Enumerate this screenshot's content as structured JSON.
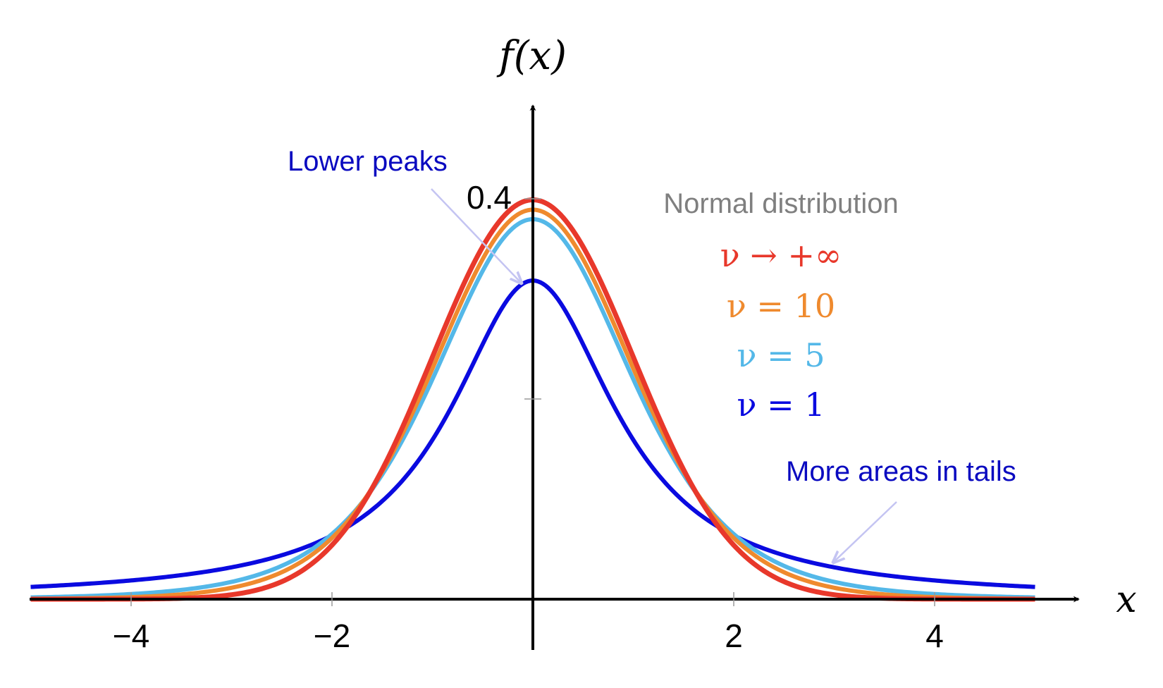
{
  "chart_data": {
    "type": "line",
    "title": "",
    "xlabel": "x",
    "ylabel": "f(x)",
    "xlim": [
      -5,
      5
    ],
    "ylim": [
      0,
      0.4
    ],
    "x_ticks": [
      -4,
      -2,
      2,
      4
    ],
    "x_tick_labels": [
      "−4",
      "−2",
      "2",
      "4"
    ],
    "y_ticks": [
      0.2,
      0.4
    ],
    "y_tick_labels": [
      "",
      "0.4"
    ],
    "grid": false,
    "legend_title": "Normal distribution",
    "legend_position": "top-right",
    "series": [
      {
        "name": "ν → +∞",
        "color": "#e8382b",
        "kind": "normal",
        "peak": 0.399
      },
      {
        "name": "ν = 10",
        "color": "#ef8a2e",
        "kind": "t",
        "nu": 10,
        "peak": 0.389
      },
      {
        "name": "ν = 5",
        "color": "#54b8e8",
        "kind": "t",
        "nu": 5,
        "peak": 0.38
      },
      {
        "name": "ν = 1",
        "color": "#0a0ae0",
        "kind": "t",
        "nu": 1,
        "peak": 0.318
      }
    ],
    "annotations": [
      {
        "text": "Lower peaks",
        "color": "#0a0ac0"
      },
      {
        "text": "More areas in tails",
        "color": "#0a0ac0"
      }
    ],
    "arrow_color": "#c4c4f2",
    "axis_color": "#000000"
  }
}
